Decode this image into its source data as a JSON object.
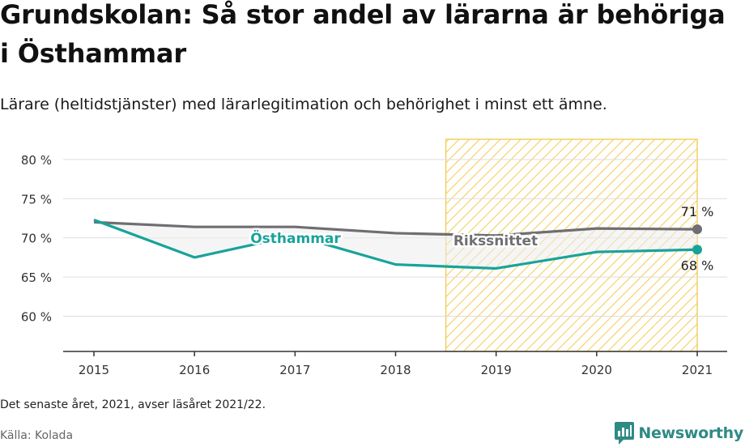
{
  "title": "Grundskolan: Så stor andel av lärarna är behöriga i Östhammar",
  "subtitle": "Lärare (heltidstjänster) med lärarlegitimation och behörighet i minst ett ämne.",
  "footnote": "Det senaste året, 2021, avser läsåret 2021/22.",
  "source": "Källa: Kolada",
  "brand": {
    "name": "Newsworthy",
    "icon": "newsworthy-logo-icon"
  },
  "colors": {
    "local": "#18a39a",
    "national": "#6f6e73",
    "highlight": "#f3cf5e",
    "grid": "#dddddd"
  },
  "chart_data": {
    "type": "line",
    "x": [
      "2015",
      "2016",
      "2017",
      "2018",
      "2019",
      "2020",
      "2021"
    ],
    "ylim": [
      55.5,
      83
    ],
    "yticks": [
      60,
      65,
      70,
      75,
      80
    ],
    "ytick_labels": [
      "60 %",
      "65 %",
      "70 %",
      "75 %",
      "80 %"
    ],
    "highlight_range": [
      "2019",
      "2021"
    ],
    "series": [
      {
        "name": "Östhammar",
        "values": [
          72.3,
          67.5,
          70.3,
          66.6,
          66.1,
          68.2,
          68.5
        ],
        "end_label": "68 %"
      },
      {
        "name": "Rikssnittet",
        "values": [
          72.0,
          71.4,
          71.4,
          70.6,
          70.3,
          71.2,
          71.1
        ],
        "end_label": "71 %"
      }
    ]
  }
}
